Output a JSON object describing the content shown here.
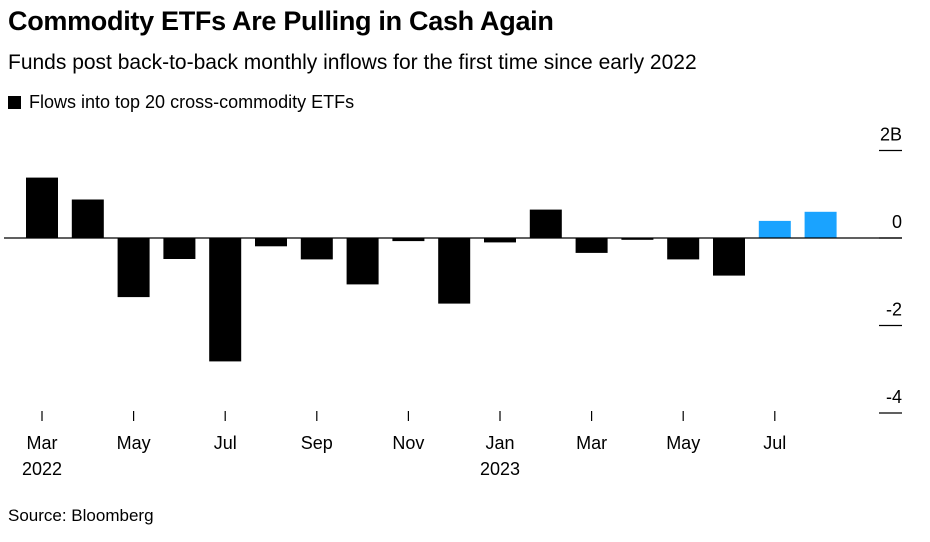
{
  "chart_data": {
    "type": "bar",
    "title": "Commodity ETFs Are Pulling in Cash Again",
    "subtitle": "Funds post back-to-back monthly inflows for the first time since early 2022",
    "legend": [
      {
        "name": "Flows into top 20 cross-commodity ETFs",
        "color": "#000000"
      }
    ],
    "source": "Source: Bloomberg",
    "categories": [
      "Mar 2022",
      "Apr 2022",
      "May 2022",
      "Jun 2022",
      "Jul 2022",
      "Aug 2022",
      "Sep 2022",
      "Oct 2022",
      "Nov 2022",
      "Dec 2022",
      "Jan 2023",
      "Feb 2023",
      "Mar 2023",
      "Apr 2023",
      "May 2023",
      "Jun 2023",
      "Jul 2023",
      "Aug 2023"
    ],
    "values": [
      1.38,
      0.88,
      -1.35,
      -0.48,
      -2.82,
      -0.19,
      -0.49,
      -1.06,
      -0.07,
      -1.5,
      -0.1,
      0.65,
      -0.34,
      -0.04,
      -0.49,
      -0.86,
      0.39,
      0.6
    ],
    "colors": [
      "#000000",
      "#000000",
      "#000000",
      "#000000",
      "#000000",
      "#000000",
      "#000000",
      "#000000",
      "#000000",
      "#000000",
      "#000000",
      "#000000",
      "#000000",
      "#000000",
      "#000000",
      "#000000",
      "#1aa3ff",
      "#1aa3ff"
    ],
    "ylim": [
      -4,
      2
    ],
    "yticks": [
      {
        "value": 2,
        "label": "2B"
      },
      {
        "value": 0,
        "label": "0"
      },
      {
        "value": -2,
        "label": "-2"
      },
      {
        "value": -4,
        "label": "-4"
      }
    ],
    "xticks": [
      {
        "index": 0,
        "label": "Mar",
        "year": "2022"
      },
      {
        "index": 2,
        "label": "May",
        "year": ""
      },
      {
        "index": 4,
        "label": "Jul",
        "year": ""
      },
      {
        "index": 6,
        "label": "Sep",
        "year": ""
      },
      {
        "index": 8,
        "label": "Nov",
        "year": ""
      },
      {
        "index": 10,
        "label": "Jan",
        "year": "2023"
      },
      {
        "index": 12,
        "label": "Mar",
        "year": ""
      },
      {
        "index": 14,
        "label": "May",
        "year": ""
      },
      {
        "index": 16,
        "label": "Jul",
        "year": ""
      }
    ],
    "grid": false,
    "legend_position": "top-left"
  }
}
